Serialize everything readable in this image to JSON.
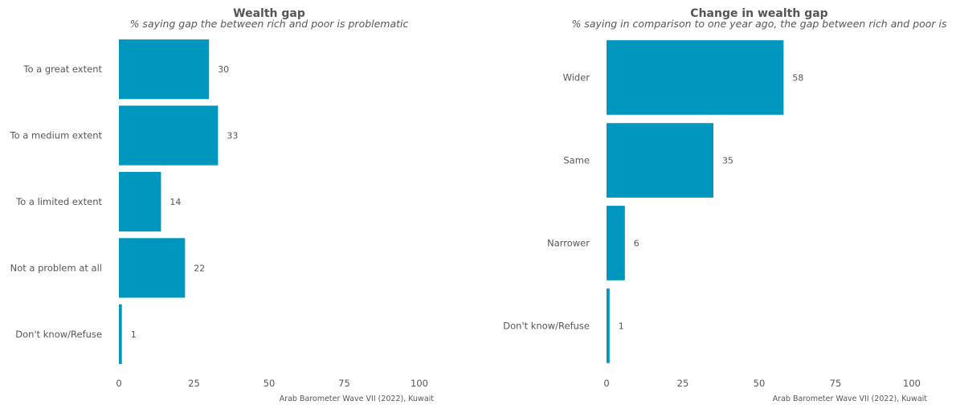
{
  "chart_data": [
    {
      "type": "bar",
      "orientation": "horizontal",
      "title": "Wealth gap",
      "subtitle": "% saying gap the between rich and poor is problematic",
      "categories": [
        "To a great extent",
        "To a medium extent",
        "To a limited extent",
        "Not a problem at all",
        "Don't know/Refuse"
      ],
      "values": [
        30,
        33,
        14,
        22,
        1
      ],
      "xlim": [
        0,
        100
      ],
      "xticks": [
        "0",
        "25",
        "50",
        "75",
        "100"
      ],
      "grid": false,
      "caption": "Arab Barometer Wave VII (2022), Kuwait",
      "color": "#0096BE"
    },
    {
      "type": "bar",
      "orientation": "horizontal",
      "title": "Change in wealth gap",
      "subtitle": "% saying in comparison to one year ago, the gap between rich and poor is",
      "categories": [
        "Wider",
        "Same",
        "Narrower",
        "Don't know/Refuse"
      ],
      "values": [
        58,
        35,
        6,
        1
      ],
      "xlim": [
        0,
        100
      ],
      "xticks": [
        "0",
        "25",
        "50",
        "75",
        "100"
      ],
      "grid": false,
      "caption": "Arab Barometer Wave VII (2022), Kuwait",
      "color": "#0096BE"
    }
  ]
}
